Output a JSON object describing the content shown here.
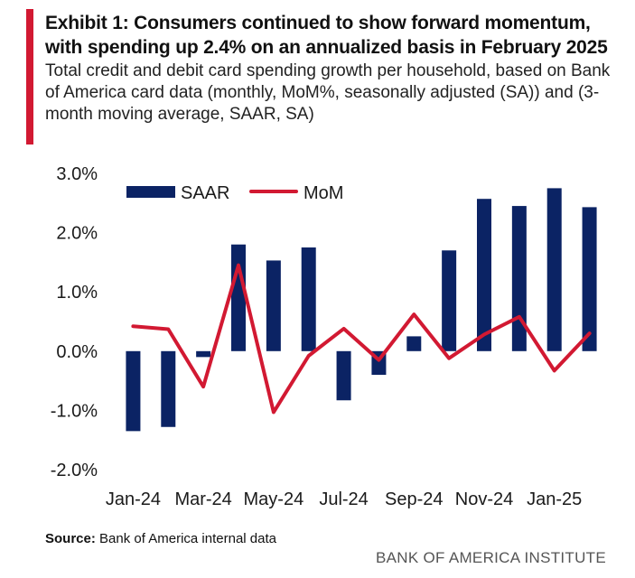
{
  "title": "Exhibit 1: Consumers continued to show forward momentum, with spending up 2.4% on an annualized basis in February 2025",
  "subtitle": "Total credit and debit card spending growth per household, based on Bank of America card data (monthly, MoM%, seasonally adjusted (SA)) and (3-month moving average, SAAR, SA)",
  "source_label": "Source:",
  "source_text": "Bank of America internal data",
  "brand": "BANK OF AMERICA INSTITUTE",
  "colors": {
    "accent": "#d21932",
    "bar": "#0b2364",
    "line": "#d21932"
  },
  "chart_data": {
    "type": "bar+line",
    "categories": [
      "Jan-24",
      "Feb-24",
      "Mar-24",
      "Apr-24",
      "May-24",
      "Jun-24",
      "Jul-24",
      "Aug-24",
      "Sep-24",
      "Oct-24",
      "Nov-24",
      "Dec-24",
      "Jan-25",
      "Feb-25"
    ],
    "x_tick_labels": [
      "Jan-24",
      "Mar-24",
      "May-24",
      "Jul-24",
      "Sep-24",
      "Nov-24",
      "Jan-25"
    ],
    "series": [
      {
        "name": "SAAR",
        "kind": "bar",
        "values": [
          -1.35,
          -1.28,
          -0.1,
          1.8,
          1.53,
          1.75,
          -0.83,
          -0.4,
          0.25,
          1.7,
          2.57,
          2.45,
          2.75,
          2.43
        ]
      },
      {
        "name": "MoM",
        "kind": "line",
        "values": [
          0.42,
          0.37,
          -0.6,
          1.45,
          -1.03,
          -0.08,
          0.38,
          -0.15,
          0.62,
          -0.12,
          0.28,
          0.58,
          -0.33,
          0.3
        ]
      }
    ],
    "ylim": [
      -2.0,
      3.0
    ],
    "y_ticks": [
      3.0,
      2.0,
      1.0,
      0.0,
      -1.0,
      -2.0
    ],
    "y_tick_labels": [
      "3.0%",
      "2.0%",
      "1.0%",
      "0.0%",
      "-1.0%",
      "-2.0%"
    ],
    "legend": [
      "SAAR",
      "MoM"
    ],
    "legend_position": "top-left",
    "grid": false
  }
}
